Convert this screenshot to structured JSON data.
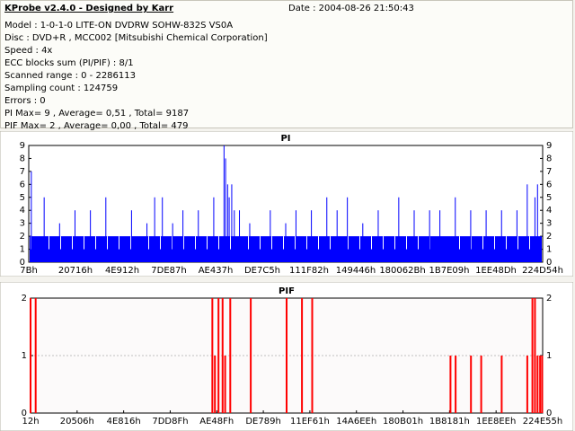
{
  "header": {
    "title": "KProbe v2.4.0 - Designed by Karr",
    "date": "Date : 2004-08-26 21:50:43"
  },
  "info_lines": [
    "Model : 1-0-1-0 LITE-ON DVDRW SOHW-832S  VS0A",
    "Disc : DVD+R , MCC002 [Mitsubishi Chemical Corporation]",
    "Speed : 4x",
    "ECC blocks sum (PI/PIF) : 8/1",
    "Scanned range : 0 - 2286113",
    "Sampling count : 124759",
    "Errors : 0",
    "PI Max= 9 , Average= 0,51 , Total= 9187",
    "PIF Max= 2 , Average= 0,00 , Total= 479"
  ],
  "chart_data": [
    {
      "type": "bar",
      "title": "PI",
      "color": "#0000ff",
      "ylim": [
        0,
        9
      ],
      "y_ticks": [
        "0",
        "1",
        "2",
        "3",
        "4",
        "5",
        "6",
        "7",
        "8",
        "9"
      ],
      "x_ticks": [
        "7Bh",
        "20716h",
        "4E912h",
        "7DE87h",
        "AE437h",
        "DE7C5h",
        "111F82h",
        "149446h",
        "180062Bh",
        "1B7E09h",
        "1EE48Dh",
        "224D54h"
      ],
      "baseline": 2,
      "spikes": [
        [
          0.005,
          7
        ],
        [
          0.03,
          5
        ],
        [
          0.06,
          3
        ],
        [
          0.09,
          4
        ],
        [
          0.12,
          4
        ],
        [
          0.15,
          5
        ],
        [
          0.2,
          4
        ],
        [
          0.23,
          3
        ],
        [
          0.245,
          5
        ],
        [
          0.26,
          5
        ],
        [
          0.28,
          3
        ],
        [
          0.3,
          4
        ],
        [
          0.33,
          4
        ],
        [
          0.36,
          5
        ],
        [
          0.38,
          9
        ],
        [
          0.383,
          8
        ],
        [
          0.387,
          6
        ],
        [
          0.39,
          5
        ],
        [
          0.395,
          6
        ],
        [
          0.4,
          4
        ],
        [
          0.41,
          4
        ],
        [
          0.43,
          3
        ],
        [
          0.47,
          4
        ],
        [
          0.5,
          3
        ],
        [
          0.52,
          4
        ],
        [
          0.55,
          4
        ],
        [
          0.58,
          5
        ],
        [
          0.6,
          4
        ],
        [
          0.62,
          5
        ],
        [
          0.65,
          3
        ],
        [
          0.68,
          4
        ],
        [
          0.72,
          5
        ],
        [
          0.75,
          4
        ],
        [
          0.78,
          4
        ],
        [
          0.8,
          4
        ],
        [
          0.83,
          5
        ],
        [
          0.86,
          4
        ],
        [
          0.89,
          4
        ],
        [
          0.92,
          4
        ],
        [
          0.95,
          4
        ],
        [
          0.97,
          6
        ],
        [
          0.985,
          5
        ],
        [
          0.99,
          6
        ]
      ]
    },
    {
      "type": "bar",
      "title": "PIF",
      "color": "#ff0000",
      "ylim": [
        0,
        2
      ],
      "y_ticks": [
        "0",
        "1",
        "2"
      ],
      "x_ticks": [
        "12h",
        "20506h",
        "4E816h",
        "7DD8Fh",
        "AE48Fh",
        "DE789h",
        "11EF61h",
        "14A6EEh",
        "180B01h",
        "1B8181h",
        "1EE8EEh",
        "224E55h"
      ],
      "spikes": [
        [
          0.0,
          2
        ],
        [
          0.01,
          2
        ],
        [
          0.355,
          2
        ],
        [
          0.36,
          1
        ],
        [
          0.367,
          2
        ],
        [
          0.375,
          2
        ],
        [
          0.38,
          1
        ],
        [
          0.39,
          2
        ],
        [
          0.43,
          2
        ],
        [
          0.5,
          2
        ],
        [
          0.53,
          2
        ],
        [
          0.55,
          2
        ],
        [
          0.82,
          1
        ],
        [
          0.83,
          1
        ],
        [
          0.86,
          1
        ],
        [
          0.88,
          1
        ],
        [
          0.92,
          1
        ],
        [
          0.97,
          1
        ],
        [
          0.98,
          2
        ],
        [
          0.985,
          2
        ],
        [
          0.99,
          1
        ],
        [
          0.995,
          1
        ],
        [
          0.999,
          1
        ]
      ]
    }
  ]
}
